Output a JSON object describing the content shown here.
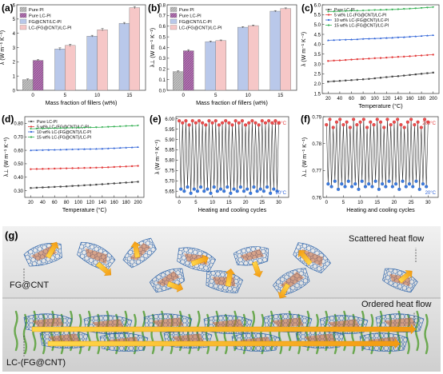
{
  "panel_labels": [
    "(a)",
    "(b)",
    "(c)",
    "(d)",
    "(e)",
    "(f)",
    "(g)"
  ],
  "colors": {
    "pure_pi": "#b9b9b9",
    "pure_lc_pi": "#a65fa6",
    "fg_cnt_lc_pi": "#b9c8ea",
    "lc_fg_cnt_lc_pi": "#f6c7c7",
    "line_black": "#444444",
    "line_red": "#e33b3b",
    "line_blue": "#2f63d7",
    "line_green": "#2fae4e",
    "point_red": "#ee4d4d",
    "point_blue": "#3a7be0",
    "cycle_line": "#222222",
    "bg_top": "#e9e9e9",
    "bg_bottom": "#d8d8d8",
    "arrow": "#f7b51b",
    "mesh": "#1f5aa6",
    "chain": "#6aa84f",
    "brown": "#b55a27"
  },
  "annotations": {
    "g_top_label": "FG@CNT",
    "g_bottom_label": "LC-(FG@CNT)",
    "g_scattered": "Scattered heat flow",
    "g_ordered": "Ordered heat flow"
  },
  "chart_data": [
    {
      "id": "a",
      "type": "bar",
      "categories": [
        "0",
        "5",
        "10",
        "15"
      ],
      "series": [
        {
          "name": "Pure PI",
          "values": [
            0.75,
            null,
            null,
            null
          ]
        },
        {
          "name": "Pure LC-PI",
          "values": [
            2.1,
            null,
            null,
            null
          ]
        },
        {
          "name": "FG@CNT/LC-PI",
          "values": [
            null,
            2.9,
            3.8,
            4.7
          ]
        },
        {
          "name": "LC-(FG@CNT)/LC-PI",
          "values": [
            null,
            3.15,
            4.25,
            5.8
          ]
        }
      ],
      "errors": [
        0.05,
        0.05,
        0.08,
        0.08,
        0.06,
        0.08,
        0.06,
        0.08
      ],
      "xlabel": "Mass fraction of fillers (wt%)",
      "ylabel": "λ (W m⁻¹ K⁻¹)",
      "ylim": [
        0,
        6
      ],
      "yticks": [
        "0",
        "1",
        "2",
        "3",
        "4",
        "5",
        "6"
      ],
      "legend": "top-left"
    },
    {
      "id": "b",
      "type": "bar",
      "categories": [
        "0",
        "5",
        "10",
        "15"
      ],
      "series": [
        {
          "name": "Pure PI",
          "values": [
            0.175,
            null,
            null,
            null
          ]
        },
        {
          "name": "Pure LC-PI",
          "values": [
            0.37,
            null,
            null,
            null
          ]
        },
        {
          "name": "FG@CNT/LC-PI",
          "values": [
            null,
            0.455,
            0.59,
            0.74
          ]
        },
        {
          "name": "LC-(FG@CNT)/LC-PI",
          "values": [
            null,
            0.465,
            0.605,
            0.765
          ]
        }
      ],
      "errors": [
        0.008,
        0.01,
        0.006,
        0.006,
        0.006,
        0.006,
        0.006,
        0.006
      ],
      "xlabel": "Mass fraction of fillers (wt%)",
      "ylabel": "λ⊥ (W m⁻¹ K⁻¹)",
      "ylim": [
        0,
        0.8
      ],
      "yticks": [
        "0.0",
        "0.1",
        "0.2",
        "0.3",
        "0.4",
        "0.5",
        "0.6",
        "0.7",
        "0.8"
      ],
      "legend": "top-left"
    },
    {
      "id": "c",
      "type": "line",
      "x": [
        20,
        30,
        40,
        50,
        60,
        70,
        80,
        90,
        100,
        110,
        120,
        130,
        140,
        150,
        160,
        170,
        180,
        190,
        200
      ],
      "series": [
        {
          "name": "Pure LC-PI",
          "values": [
            2.1,
            2.12,
            2.14,
            2.16,
            2.18,
            2.2,
            2.22,
            2.24,
            2.27,
            2.3,
            2.33,
            2.36,
            2.38,
            2.41,
            2.44,
            2.47,
            2.5,
            2.53,
            2.56
          ]
        },
        {
          "name": "5 wt% LC-(FG@CNT)/LC-PI",
          "values": [
            3.15,
            3.17,
            3.18,
            3.2,
            3.22,
            3.24,
            3.25,
            3.27,
            3.29,
            3.3,
            3.32,
            3.34,
            3.36,
            3.37,
            3.39,
            3.41,
            3.43,
            3.45,
            3.47
          ]
        },
        {
          "name": "10 wt% LC-(FG@CNT)/LC-PI",
          "values": [
            4.2,
            4.21,
            4.22,
            4.23,
            4.24,
            4.25,
            4.27,
            4.28,
            4.29,
            4.3,
            4.32,
            4.33,
            4.35,
            4.36,
            4.38,
            4.4,
            4.42,
            4.44,
            4.46
          ]
        },
        {
          "name": "15 wt% LC-(FG@CNT)/LC-PI",
          "values": [
            5.65,
            5.66,
            5.67,
            5.68,
            5.69,
            5.7,
            5.71,
            5.72,
            5.73,
            5.74,
            5.75,
            5.76,
            5.77,
            5.79,
            5.8,
            5.82,
            5.84,
            5.86,
            5.88
          ]
        }
      ],
      "xlabel": "Temperature (°C)",
      "ylabel": "λ (W m⁻¹ K⁻¹)",
      "xlim": [
        10,
        210
      ],
      "ylim": [
        1.5,
        6.0
      ],
      "xticks": [
        20,
        40,
        60,
        80,
        100,
        120,
        140,
        160,
        180,
        200
      ],
      "yticks": [
        "1.5",
        "2.0",
        "2.5",
        "3.0",
        "3.5",
        "4.0",
        "4.5",
        "5.0",
        "5.5",
        "6.0"
      ],
      "legend": "top-left"
    },
    {
      "id": "d",
      "type": "line",
      "x": [
        20,
        30,
        40,
        50,
        60,
        70,
        80,
        90,
        100,
        110,
        120,
        130,
        140,
        150,
        160,
        170,
        180,
        190,
        200
      ],
      "series": [
        {
          "name": "Pure LC-PI",
          "values": [
            0.32,
            0.322,
            0.324,
            0.326,
            0.328,
            0.33,
            0.332,
            0.335,
            0.337,
            0.34,
            0.342,
            0.345,
            0.348,
            0.351,
            0.354,
            0.357,
            0.36,
            0.363,
            0.366
          ]
        },
        {
          "name": "5 wt% LC-(FG@CNT)/LC-PI",
          "values": [
            0.46,
            0.461,
            0.462,
            0.463,
            0.464,
            0.465,
            0.466,
            0.467,
            0.468,
            0.469,
            0.47,
            0.471,
            0.472,
            0.474,
            0.476,
            0.478,
            0.48,
            0.482,
            0.484
          ]
        },
        {
          "name": "10 wt% LC-(FG@CNT)/LC-PI",
          "values": [
            0.6,
            0.601,
            0.602,
            0.603,
            0.604,
            0.605,
            0.606,
            0.607,
            0.608,
            0.609,
            0.61,
            0.611,
            0.612,
            0.614,
            0.616,
            0.618,
            0.62,
            0.622,
            0.624
          ]
        },
        {
          "name": "15 wt% LC-(FG@CNT)/LC-PI",
          "values": [
            0.76,
            0.761,
            0.762,
            0.763,
            0.764,
            0.765,
            0.766,
            0.767,
            0.768,
            0.769,
            0.77,
            0.771,
            0.772,
            0.774,
            0.776,
            0.778,
            0.78,
            0.782,
            0.784
          ]
        }
      ],
      "xlabel": "Temperature (°C)",
      "ylabel": "λ⊥ (W m⁻¹ K⁻¹)",
      "xlim": [
        10,
        210
      ],
      "ylim": [
        0.25,
        0.85
      ],
      "xticks": [
        20,
        40,
        60,
        80,
        100,
        120,
        140,
        160,
        180,
        200
      ],
      "yticks": [
        "0.30",
        "0.40",
        "0.50",
        "0.60",
        "0.70",
        "0.80"
      ],
      "legend": "top-left"
    },
    {
      "id": "e",
      "type": "line",
      "x_range": [
        0,
        30
      ],
      "cycles": 30,
      "high_label": "200°C",
      "low_label": "20°C",
      "high_values": [
        5.99,
        5.98,
        5.99,
        5.97,
        5.99,
        5.98,
        5.99,
        5.98,
        5.97,
        5.99,
        5.98,
        5.99,
        5.97,
        5.98,
        5.99,
        5.98,
        5.97,
        5.99,
        5.98,
        5.99,
        5.97,
        5.98,
        5.99,
        5.98,
        5.97,
        5.99,
        5.98,
        5.99,
        5.98,
        5.99,
        5.98
      ],
      "low_values": [
        5.66,
        5.65,
        5.67,
        5.64,
        5.66,
        5.65,
        5.67,
        5.65,
        5.66,
        5.64,
        5.67,
        5.65,
        5.66,
        5.65,
        5.67,
        5.64,
        5.66,
        5.65,
        5.67,
        5.65,
        5.66,
        5.64,
        5.67,
        5.65,
        5.66,
        5.65,
        5.67,
        5.64,
        5.66,
        5.65,
        5.66
      ],
      "xlabel": "Heating and cooling cycles",
      "ylabel": "λ (W m⁻¹ K⁻¹)",
      "xlim": [
        -1,
        33
      ],
      "ylim": [
        5.62,
        6.01
      ],
      "xticks": [
        0,
        5,
        10,
        15,
        20,
        25,
        30
      ],
      "yticks": [
        "5.65",
        "5.70",
        "5.75",
        "5.80",
        "5.85",
        "5.90",
        "5.95",
        "6.00"
      ]
    },
    {
      "id": "f",
      "type": "line",
      "x_range": [
        0,
        30
      ],
      "cycles": 30,
      "high_label": "200°C",
      "low_label": "20°C",
      "high_values": [
        0.787,
        0.789,
        0.786,
        0.788,
        0.789,
        0.787,
        0.788,
        0.786,
        0.789,
        0.787,
        0.788,
        0.789,
        0.786,
        0.788,
        0.787,
        0.789,
        0.788,
        0.786,
        0.789,
        0.787,
        0.788,
        0.789,
        0.787,
        0.786,
        0.788,
        0.789,
        0.787,
        0.788,
        0.786,
        0.789,
        0.788
      ],
      "low_values": [
        0.765,
        0.764,
        0.766,
        0.763,
        0.765,
        0.764,
        0.766,
        0.764,
        0.765,
        0.763,
        0.766,
        0.764,
        0.765,
        0.764,
        0.766,
        0.763,
        0.765,
        0.764,
        0.766,
        0.764,
        0.765,
        0.763,
        0.766,
        0.764,
        0.765,
        0.764,
        0.766,
        0.763,
        0.765,
        0.764,
        0.765
      ],
      "xlabel": "Heating and cooling cycles",
      "ylabel": "λ⊥ (W m⁻¹ K⁻¹)",
      "xlim": [
        -1,
        33
      ],
      "ylim": [
        0.76,
        0.79
      ],
      "xticks": [
        0,
        5,
        10,
        15,
        20,
        25,
        30
      ],
      "yticks": [
        "0.76",
        "0.77",
        "0.78",
        "0.79"
      ]
    }
  ]
}
